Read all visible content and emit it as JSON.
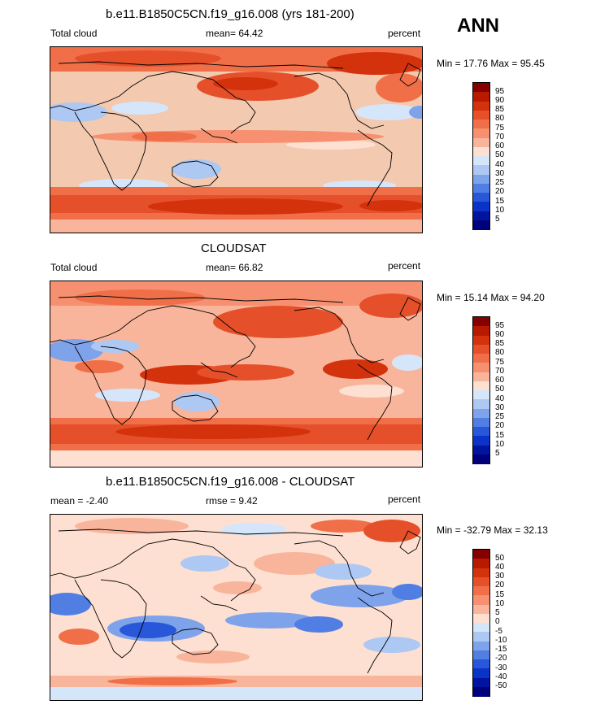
{
  "season": "ANN",
  "panels": [
    {
      "title": "b.e11.B1850C5CN.f19_g16.008 (yrs 181-200)",
      "left_label": "Total cloud",
      "center_label": "mean=  64.42",
      "units": "percent",
      "range_text": "Min =  17.76 Max =  95.45",
      "colorbar": {
        "labels": [
          "95",
          "90",
          "85",
          "80",
          "75",
          "70",
          "60",
          "50",
          "40",
          "30",
          "25",
          "20",
          "15",
          "10",
          "5"
        ],
        "colors": [
          "#860000",
          "#b81a00",
          "#d3320d",
          "#e5502a",
          "#f06f48",
          "#f69071",
          "#f9b59b",
          "#fde0d2",
          "#d6e6fa",
          "#adc8f3",
          "#7fa3eb",
          "#507ee2",
          "#2858d9",
          "#0b33c7",
          "#0014a0",
          "#00007b"
        ]
      }
    },
    {
      "title": "CLOUDSAT",
      "left_label": "Total cloud",
      "center_label": "mean=  66.82",
      "units": "percent",
      "range_text": "Min =  15.14 Max =  94.20",
      "colorbar": {
        "labels": [
          "95",
          "90",
          "85",
          "80",
          "75",
          "70",
          "60",
          "50",
          "40",
          "30",
          "25",
          "20",
          "15",
          "10",
          "5"
        ],
        "colors": [
          "#860000",
          "#b81a00",
          "#d3320d",
          "#e5502a",
          "#f06f48",
          "#f69071",
          "#f9b59b",
          "#fde0d2",
          "#d6e6fa",
          "#adc8f3",
          "#7fa3eb",
          "#507ee2",
          "#2858d9",
          "#0b33c7",
          "#0014a0",
          "#00007b"
        ]
      }
    },
    {
      "title": "b.e11.B1850C5CN.f19_g16.008 - CLOUDSAT",
      "left_label": "mean =  -2.40",
      "center_label": "rmse =   9.42",
      "units": "percent",
      "range_text": "Min = -32.79 Max =  32.13",
      "colorbar": {
        "labels": [
          "50",
          "40",
          "30",
          "20",
          "15",
          "10",
          "5",
          "0",
          "-5",
          "-10",
          "-15",
          "-20",
          "-30",
          "-40",
          "-50"
        ],
        "colors": [
          "#860000",
          "#b81a00",
          "#d3320d",
          "#e5502a",
          "#f06f48",
          "#f69071",
          "#f9b59b",
          "#fde0d2",
          "#d6e6fa",
          "#adc8f3",
          "#7fa3eb",
          "#507ee2",
          "#2858d9",
          "#0b33c7",
          "#0014a0",
          "#00007b"
        ]
      }
    }
  ]
}
